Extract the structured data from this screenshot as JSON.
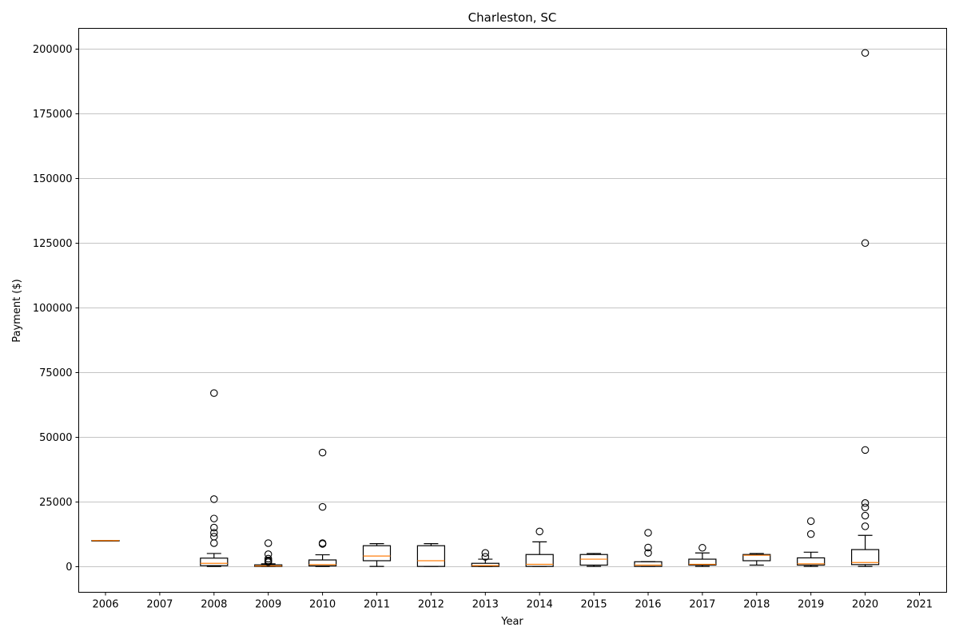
{
  "chart_data": {
    "type": "box",
    "title": "Charleston, SC",
    "xlabel": "Year",
    "ylabel": "Payment ($)",
    "ylim": [
      -10000,
      208000
    ],
    "yticks": [
      0,
      25000,
      50000,
      75000,
      100000,
      125000,
      150000,
      175000,
      200000
    ],
    "ytick_labels": [
      "0",
      "25000",
      "50000",
      "75000",
      "100000",
      "125000",
      "150000",
      "175000",
      "200000"
    ],
    "grid": "horizontal",
    "colors": {
      "box": "#000000",
      "median": "#ff7f0e",
      "grid": "#b0b0b0"
    },
    "categories": [
      "2006",
      "2007",
      "2008",
      "2009",
      "2010",
      "2011",
      "2012",
      "2013",
      "2014",
      "2015",
      "2016",
      "2017",
      "2018",
      "2019",
      "2020",
      "2021"
    ],
    "boxes": [
      {
        "year": "2006",
        "whislo": 10000,
        "q1": 10000,
        "med": 10000,
        "q3": 10000,
        "whishi": 10000,
        "fliers": []
      },
      {
        "year": "2007",
        "empty": true
      },
      {
        "year": "2008",
        "whislo": 0,
        "q1": 300,
        "med": 1200,
        "q3": 3200,
        "whishi": 5000,
        "fliers": [
          67000,
          26000,
          18500,
          15000,
          13000,
          11500,
          9000
        ]
      },
      {
        "year": "2009",
        "whislo": 0,
        "q1": 0,
        "med": 200,
        "q3": 600,
        "whishi": 1000,
        "fliers": [
          9000,
          4700,
          3000,
          2300,
          2000,
          1600
        ]
      },
      {
        "year": "2010",
        "whislo": 0,
        "q1": 200,
        "med": 700,
        "q3": 2500,
        "whishi": 4500,
        "fliers": [
          44000,
          23000,
          9000,
          8700
        ]
      },
      {
        "year": "2011",
        "whislo": 0,
        "q1": 2200,
        "med": 4000,
        "q3": 8000,
        "whishi": 8800,
        "fliers": []
      },
      {
        "year": "2012",
        "whislo": 0,
        "q1": 0,
        "med": 2200,
        "q3": 8000,
        "whishi": 8800,
        "fliers": []
      },
      {
        "year": "2013",
        "whislo": 0,
        "q1": 0,
        "med": 300,
        "q3": 1200,
        "whishi": 2800,
        "fliers": [
          5200,
          3700
        ]
      },
      {
        "year": "2014",
        "whislo": 0,
        "q1": 0,
        "med": 800,
        "q3": 4600,
        "whishi": 9500,
        "fliers": [
          13500
        ]
      },
      {
        "year": "2015",
        "whislo": 0,
        "q1": 500,
        "med": 2800,
        "q3": 4600,
        "whishi": 5000,
        "fliers": []
      },
      {
        "year": "2016",
        "whislo": 0,
        "q1": 0,
        "med": 500,
        "q3": 1800,
        "whishi": 1800,
        "fliers": [
          13000,
          7300,
          5200
        ]
      },
      {
        "year": "2017",
        "whislo": 0,
        "q1": 500,
        "med": 800,
        "q3": 2800,
        "whishi": 5200,
        "fliers": [
          7200
        ]
      },
      {
        "year": "2018",
        "whislo": 500,
        "q1": 2200,
        "med": 4300,
        "q3": 4600,
        "whishi": 5000,
        "fliers": []
      },
      {
        "year": "2019",
        "whislo": 0,
        "q1": 500,
        "med": 1000,
        "q3": 3300,
        "whishi": 5500,
        "fliers": [
          17500,
          12500
        ]
      },
      {
        "year": "2020",
        "whislo": 0,
        "q1": 700,
        "med": 1500,
        "q3": 6500,
        "whishi": 12000,
        "fliers": [
          198500,
          125000,
          45000,
          24500,
          22800,
          19600,
          15500
        ]
      },
      {
        "year": "2021",
        "empty": true
      }
    ]
  }
}
